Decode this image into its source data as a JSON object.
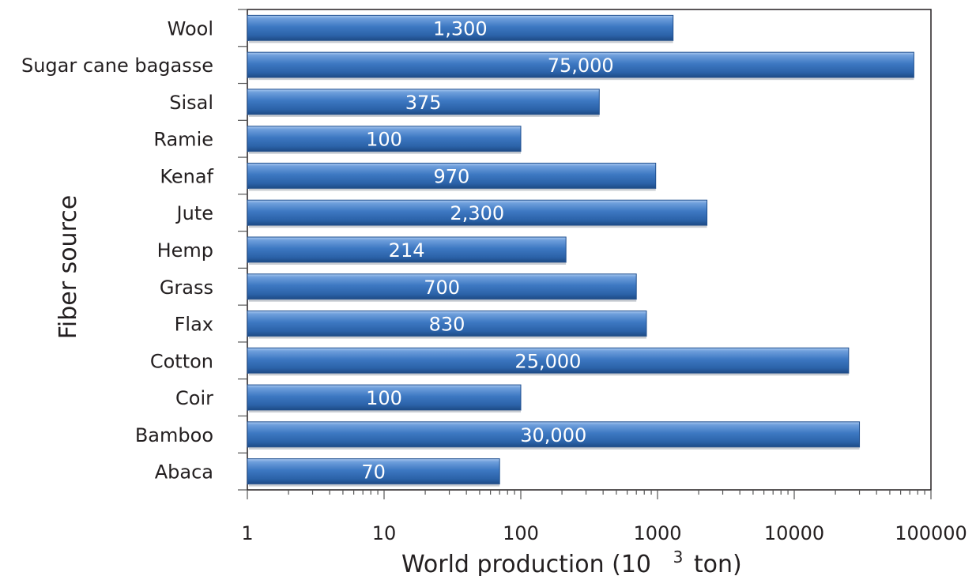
{
  "chart_data": {
    "type": "bar",
    "orientation": "horizontal",
    "categories": [
      "Wool",
      "Sugar cane bagasse",
      "Sisal",
      "Ramie",
      "Kenaf",
      "Jute",
      "Hemp",
      "Grass",
      "Flax",
      "Cotton",
      "Coir",
      "Bamboo",
      "Abaca"
    ],
    "values": [
      1300,
      75000,
      375,
      100,
      970,
      2300,
      214,
      700,
      830,
      25000,
      100,
      30000,
      70
    ],
    "data_labels": [
      "1,300",
      "75,000",
      "375",
      "100",
      "970",
      "2,300",
      "214",
      "700",
      "830",
      "25,000",
      "100",
      "30,000",
      "70"
    ],
    "xlabel": "World production (10",
    "xlabel_sup": "3",
    "xlabel_unit": "ton)",
    "ylabel": "Fiber source",
    "x_scale": "log",
    "xlim": [
      1,
      100000
    ],
    "x_ticks": [
      "1",
      "10",
      "100",
      "1000",
      "10000",
      "100000"
    ],
    "grid": false,
    "legend": "none",
    "bar_color": "#3a75bd",
    "bar_edge_color": "#1f4f8f"
  }
}
